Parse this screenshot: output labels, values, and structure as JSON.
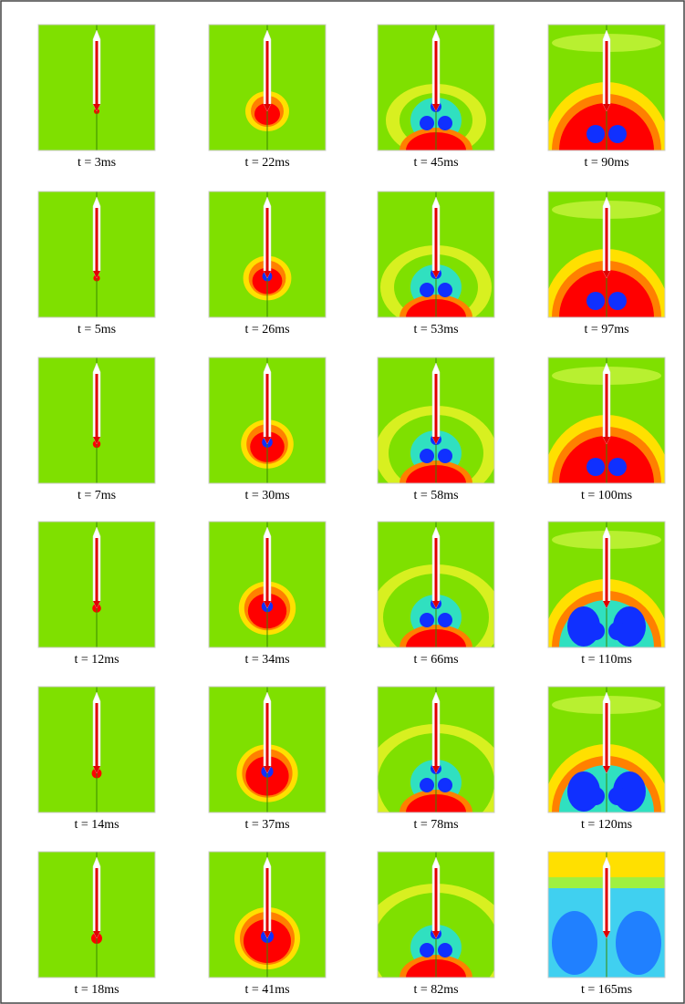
{
  "panels": [
    [
      "t = 3ms",
      "t = 22ms",
      "t = 45ms",
      "t = 90ms"
    ],
    [
      "t = 5ms",
      "t = 26ms",
      "t = 53ms",
      "t = 97ms"
    ],
    [
      "t = 7ms",
      "t = 30ms",
      "t = 58ms",
      "t = 100ms"
    ],
    [
      "t = 12ms",
      "t = 34ms",
      "t = 66ms",
      "t = 110ms"
    ],
    [
      "t = 14ms",
      "t = 37ms",
      "t = 78ms",
      "t = 120ms"
    ],
    [
      "t = 18ms",
      "t = 41ms",
      "t = 82ms",
      "t = 165ms"
    ]
  ]
}
